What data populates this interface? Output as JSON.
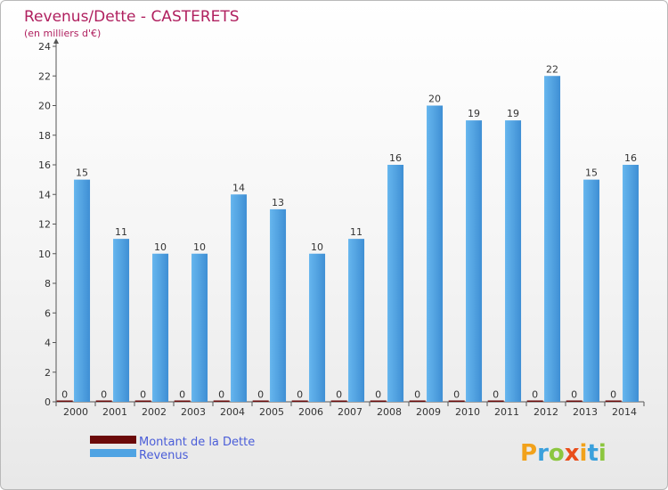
{
  "chart_data": {
    "type": "bar",
    "title": "Revenus/Dette - CASTERETS",
    "subtitle": "(en milliers d'€)",
    "categories": [
      "2000",
      "2001",
      "2002",
      "2003",
      "2004",
      "2005",
      "2006",
      "2007",
      "2008",
      "2009",
      "2010",
      "2011",
      "2012",
      "2013",
      "2014"
    ],
    "series": [
      {
        "name": "Montant de la Dette",
        "color": "#6b0a0a",
        "values": [
          0,
          0,
          0,
          0,
          0,
          0,
          0,
          0,
          0,
          0,
          0,
          0,
          0,
          0,
          0
        ]
      },
      {
        "name": "Revenus",
        "color": "#4fa3e3",
        "values": [
          15,
          11,
          10,
          10,
          14,
          13,
          10,
          11,
          16,
          20,
          19,
          19,
          22,
          15,
          16
        ]
      }
    ],
    "ylim": [
      0,
      24
    ],
    "yticks": [
      0,
      2,
      4,
      6,
      8,
      10,
      12,
      14,
      16,
      18,
      20,
      22,
      24
    ],
    "xlabel": "",
    "ylabel": "",
    "grid": false,
    "legend": "bottom-left"
  },
  "brand": {
    "letters": [
      "P",
      "r",
      "o",
      "x",
      "i",
      "t",
      "i"
    ],
    "colors": [
      "#f2a21b",
      "#3aa0dc",
      "#8cc63f",
      "#e94e1b",
      "#f2a21b",
      "#3aa0dc",
      "#8cc63f"
    ]
  }
}
